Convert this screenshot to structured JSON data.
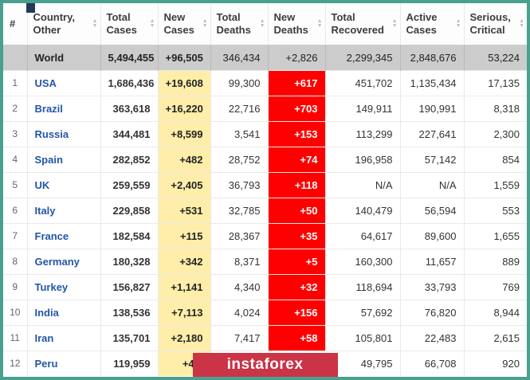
{
  "frame": {
    "border_color": "#4aa08f"
  },
  "watermark": {
    "text": "instaforex",
    "bg_color": "#cb3346",
    "text_color": "#ffffff"
  },
  "table": {
    "colors": {
      "new_cases_bg": "#ffeeaa",
      "new_deaths_bg": "#ff0000",
      "world_row_bg": "#cccccc",
      "link_color": "#2356a8"
    },
    "headers": [
      {
        "label": "#",
        "sortable": false
      },
      {
        "label": "Country, Other",
        "sortable": true
      },
      {
        "label": "Total Cases",
        "sortable": true
      },
      {
        "label": "New Cases",
        "sortable": true
      },
      {
        "label": "Total Deaths",
        "sortable": true
      },
      {
        "label": "New Deaths",
        "sortable": true
      },
      {
        "label": "Total Recovered",
        "sortable": true
      },
      {
        "label": "Active Cases",
        "sortable": true
      },
      {
        "label": "Serious, Critical",
        "sortable": true
      }
    ],
    "rows": [
      {
        "is_world": true,
        "rank": "",
        "country": "World",
        "total_cases": "5,494,455",
        "new_cases": "+96,505",
        "total_deaths": "346,434",
        "new_deaths": "+2,826",
        "total_recovered": "2,299,345",
        "active_cases": "2,848,676",
        "serious_critical": "53,224"
      },
      {
        "rank": "1",
        "country": "USA",
        "total_cases": "1,686,436",
        "new_cases": "+19,608",
        "total_deaths": "99,300",
        "new_deaths": "+617",
        "total_recovered": "451,702",
        "active_cases": "1,135,434",
        "serious_critical": "17,135"
      },
      {
        "rank": "2",
        "country": "Brazil",
        "total_cases": "363,618",
        "new_cases": "+16,220",
        "total_deaths": "22,716",
        "new_deaths": "+703",
        "total_recovered": "149,911",
        "active_cases": "190,991",
        "serious_critical": "8,318"
      },
      {
        "rank": "3",
        "country": "Russia",
        "total_cases": "344,481",
        "new_cases": "+8,599",
        "total_deaths": "3,541",
        "new_deaths": "+153",
        "total_recovered": "113,299",
        "active_cases": "227,641",
        "serious_critical": "2,300"
      },
      {
        "rank": "4",
        "country": "Spain",
        "total_cases": "282,852",
        "new_cases": "+482",
        "total_deaths": "28,752",
        "new_deaths": "+74",
        "total_recovered": "196,958",
        "active_cases": "57,142",
        "serious_critical": "854"
      },
      {
        "rank": "5",
        "country": "UK",
        "total_cases": "259,559",
        "new_cases": "+2,405",
        "total_deaths": "36,793",
        "new_deaths": "+118",
        "total_recovered": "N/A",
        "active_cases": "N/A",
        "serious_critical": "1,559"
      },
      {
        "rank": "6",
        "country": "Italy",
        "total_cases": "229,858",
        "new_cases": "+531",
        "total_deaths": "32,785",
        "new_deaths": "+50",
        "total_recovered": "140,479",
        "active_cases": "56,594",
        "serious_critical": "553"
      },
      {
        "rank": "7",
        "country": "France",
        "total_cases": "182,584",
        "new_cases": "+115",
        "total_deaths": "28,367",
        "new_deaths": "+35",
        "total_recovered": "64,617",
        "active_cases": "89,600",
        "serious_critical": "1,655"
      },
      {
        "rank": "8",
        "country": "Germany",
        "total_cases": "180,328",
        "new_cases": "+342",
        "total_deaths": "8,371",
        "new_deaths": "+5",
        "total_recovered": "160,300",
        "active_cases": "11,657",
        "serious_critical": "889"
      },
      {
        "rank": "9",
        "country": "Turkey",
        "total_cases": "156,827",
        "new_cases": "+1,141",
        "total_deaths": "4,340",
        "new_deaths": "+32",
        "total_recovered": "118,694",
        "active_cases": "33,793",
        "serious_critical": "769"
      },
      {
        "rank": "10",
        "country": "India",
        "total_cases": "138,536",
        "new_cases": "+7,113",
        "total_deaths": "4,024",
        "new_deaths": "+156",
        "total_recovered": "57,692",
        "active_cases": "76,820",
        "serious_critical": "8,944"
      },
      {
        "rank": "11",
        "country": "Iran",
        "total_cases": "135,701",
        "new_cases": "+2,180",
        "total_deaths": "7,417",
        "new_deaths": "+58",
        "total_recovered": "105,801",
        "active_cases": "22,483",
        "serious_critical": "2,615"
      },
      {
        "rank": "12",
        "country": "Peru",
        "total_cases": "119,959",
        "new_cases": "+4,2",
        "total_deaths": "",
        "new_deaths": "",
        "total_recovered": "49,795",
        "active_cases": "66,708",
        "serious_critical": "920"
      }
    ]
  }
}
